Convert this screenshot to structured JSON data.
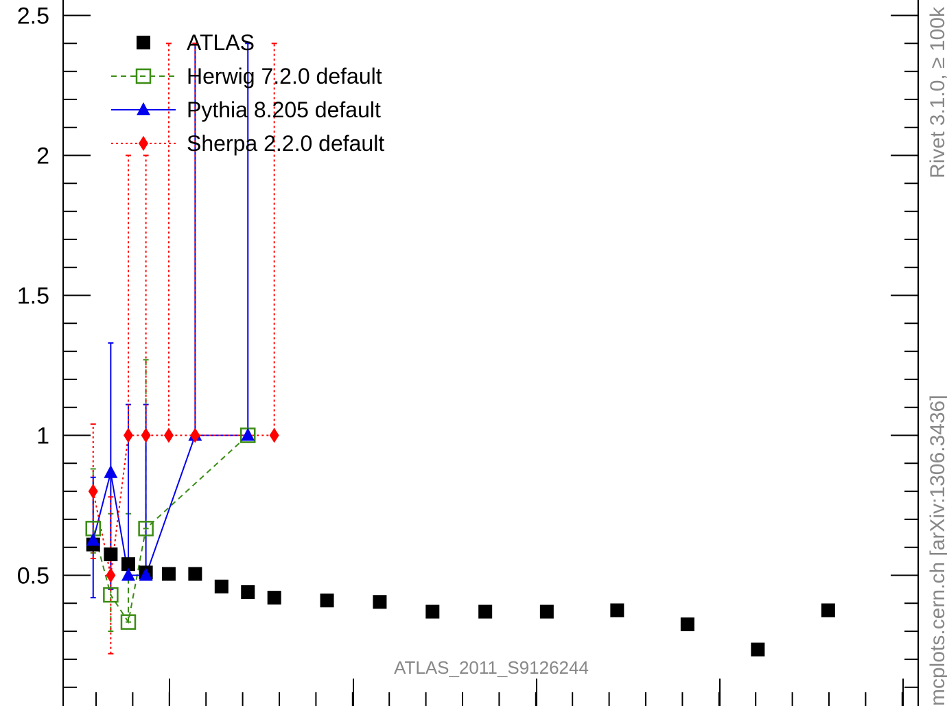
{
  "chart_data": {
    "type": "scatter",
    "title": "",
    "xlabel": "",
    "ylabel": "",
    "ylim": [
      0.0,
      2.55
    ],
    "xlim": [
      0,
      46
    ],
    "y_ticks": [
      0.5,
      1,
      1.5,
      2,
      2.5
    ],
    "y_tick_labels": [
      "0.5",
      "1",
      "1.5",
      "2",
      "2.5"
    ],
    "legend_position": "top-left",
    "series": [
      {
        "name": "ATLAS",
        "style": "marker-only",
        "color": "#000000",
        "marker": "filled-square",
        "x": [
          1.2,
          2.2,
          3.2,
          4.2,
          5.5,
          7.0,
          8.5,
          10.0,
          11.5,
          14.5,
          17.5,
          20.5,
          23.5,
          27.0,
          31.0,
          35.0,
          39.0,
          43.0
        ],
        "y": [
          0.61,
          0.575,
          0.54,
          0.51,
          0.505,
          0.505,
          0.46,
          0.44,
          0.42,
          0.41,
          0.405,
          0.37,
          0.37,
          0.37,
          0.375,
          0.325,
          0.235,
          0.375
        ]
      },
      {
        "name": "Herwig 7.2.0 default",
        "style": "dashed",
        "color": "#3a8c12",
        "marker": "open-square",
        "x": [
          1.2,
          2.2,
          3.2,
          4.2,
          10.0
        ],
        "y": [
          0.667,
          0.43,
          0.333,
          0.667,
          1.0
        ],
        "yerr_low": [
          0.58,
          0.3,
          0.333,
          0.667,
          1.0
        ],
        "yerr_high": [
          0.88,
          0.72,
          0.72,
          1.27,
          1.0
        ]
      },
      {
        "name": "Pythia 8.205 default",
        "style": "solid",
        "color": "#0000ee",
        "marker": "filled-triangle",
        "x": [
          1.2,
          2.2,
          3.2,
          4.2,
          7.0,
          10.0
        ],
        "y": [
          0.625,
          0.867,
          0.5,
          0.5,
          1.0,
          1.0
        ],
        "yerr_low": [
          0.42,
          0.45,
          0.5,
          0.5,
          1.0,
          1.0
        ],
        "yerr_high": [
          0.85,
          1.33,
          1.11,
          1.11,
          2.4,
          2.4
        ]
      },
      {
        "name": "Sherpa 2.2.0 default",
        "style": "dotted",
        "color": "#ff0000",
        "marker": "filled-diamond",
        "x": [
          1.2,
          2.2,
          3.2,
          4.2,
          5.5,
          7.0,
          11.5
        ],
        "y": [
          0.8,
          0.5,
          1.0,
          1.0,
          1.0,
          1.0,
          1.0
        ],
        "yerr_low": [
          0.56,
          0.22,
          1.0,
          1.0,
          1.0,
          1.0,
          1.0
        ],
        "yerr_high": [
          1.04,
          0.78,
          2.0,
          2.0,
          2.4,
          2.4,
          2.4
        ]
      }
    ],
    "annotations": [
      "ATLAS_2011_S9126244"
    ],
    "side_labels": [
      "Rivet 3.1.0, ≥ 100k",
      "mcplots.cern.ch [arXiv:1306.3436]"
    ]
  }
}
